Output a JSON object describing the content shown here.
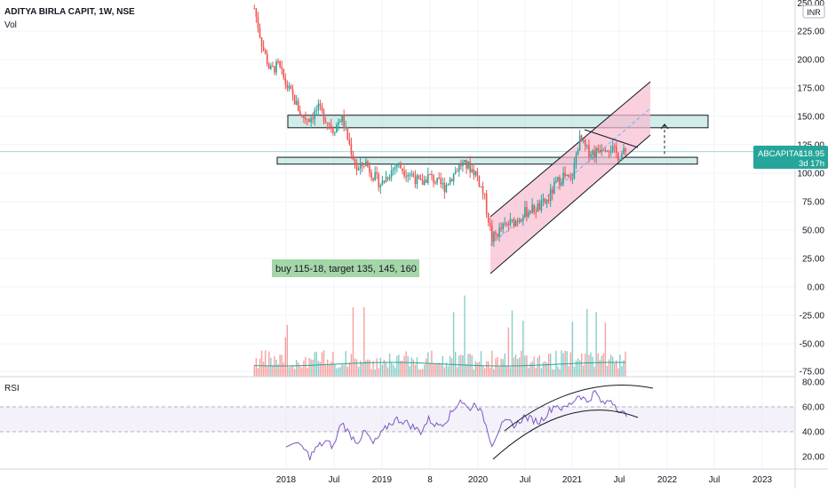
{
  "header": {
    "title": "ADITYA BIRLA CAPIT, 1W, NSE",
    "vol_label": "Vol"
  },
  "currency": "INR",
  "price_tag": {
    "symbol": "ABCAPITAL",
    "value": "118.95",
    "countdown": "3d 17h"
  },
  "annotation": "buy 115-18, target 135, 145, 160",
  "colors": {
    "up": "#26a69a",
    "down": "#ef5350",
    "text": "#131722",
    "zone_fill": "#b2dfdb",
    "channel_fill": "#f8bbd0",
    "rsi_line": "#7e57c2",
    "rsi_band": "#ede7f6",
    "vol_ma": "#26a69a",
    "annotation_bg": "#a5d6a7"
  },
  "rsi_label": "RSI",
  "chart_data": [
    {
      "type": "candlestick",
      "title": "ADITYA BIRLA CAPIT, 1W, NSE",
      "x_ticks": [
        "2018",
        "Jul",
        "2019",
        "8",
        "2020",
        "Jul",
        "2021",
        "Jul",
        "2022",
        "Jul",
        "2023"
      ],
      "y_ticks": [
        "225.00",
        "200.00",
        "175.00",
        "150.00",
        "125.00",
        "100.00",
        "75.00",
        "50.00",
        "25.00",
        "0.00",
        "-25.00",
        "-50.00",
        "-75.00"
      ],
      "y_top_partial": "250.00",
      "last_price": 118.95,
      "waypoints": [
        [
          "2017-09",
          245
        ],
        [
          "2017-10",
          212
        ],
        [
          "2017-11",
          190
        ],
        [
          "2017-12",
          195
        ],
        [
          "2018-01",
          178
        ],
        [
          "2018-02",
          165
        ],
        [
          "2018-03",
          150
        ],
        [
          "2018-04",
          148
        ],
        [
          "2018-05",
          157
        ],
        [
          "2018-06",
          148
        ],
        [
          "2018-07",
          138
        ],
        [
          "2018-08",
          150
        ],
        [
          "2018-09",
          125
        ],
        [
          "2018-10",
          102
        ],
        [
          "2018-11",
          110
        ],
        [
          "2018-12",
          98
        ],
        [
          "2019-01",
          90
        ],
        [
          "2019-02",
          100
        ],
        [
          "2019-03",
          108
        ],
        [
          "2019-04",
          102
        ],
        [
          "2019-05",
          98
        ],
        [
          "2019-06",
          90
        ],
        [
          "2019-07",
          98
        ],
        [
          "2019-08",
          92
        ],
        [
          "2019-09",
          88
        ],
        [
          "2019-10",
          98
        ],
        [
          "2019-11",
          108
        ],
        [
          "2019-12",
          106
        ],
        [
          "2020-01",
          100
        ],
        [
          "2020-02",
          80
        ],
        [
          "2020-03",
          42
        ],
        [
          "2020-04",
          50
        ],
        [
          "2020-05",
          55
        ],
        [
          "2020-06",
          58
        ],
        [
          "2020-07",
          65
        ],
        [
          "2020-08",
          68
        ],
        [
          "2020-09",
          70
        ],
        [
          "2020-10",
          76
        ],
        [
          "2020-11",
          90
        ],
        [
          "2020-12",
          98
        ],
        [
          "2021-01",
          92
        ],
        [
          "2021-02",
          130
        ],
        [
          "2021-03",
          120
        ],
        [
          "2021-04",
          118
        ],
        [
          "2021-05",
          125
        ],
        [
          "2021-06",
          122
        ],
        [
          "2021-07",
          115
        ],
        [
          "2021-08",
          119
        ]
      ],
      "zones": [
        {
          "top": 151,
          "bottom": 140
        },
        {
          "top": 114,
          "bottom": 108
        }
      ],
      "target_arrow": {
        "from": 117,
        "to": 143
      }
    },
    {
      "type": "bar",
      "title": "Vol"
    },
    {
      "type": "line",
      "title": "RSI",
      "y_ticks": [
        "80.00",
        "60.00",
        "40.00",
        "20.00"
      ],
      "band": [
        40,
        60
      ],
      "waypoints": [
        [
          "2018-01",
          30
        ],
        [
          "2018-03",
          28
        ],
        [
          "2018-04",
          20
        ],
        [
          "2018-05",
          28
        ],
        [
          "2018-06",
          32
        ],
        [
          "2018-07",
          28
        ],
        [
          "2018-08",
          48
        ],
        [
          "2018-09",
          38
        ],
        [
          "2018-10",
          32
        ],
        [
          "2018-11",
          40
        ],
        [
          "2018-12",
          30
        ],
        [
          "2019-01",
          38
        ],
        [
          "2019-02",
          46
        ],
        [
          "2019-03",
          50
        ],
        [
          "2019-04",
          48
        ],
        [
          "2019-05",
          44
        ],
        [
          "2019-06",
          40
        ],
        [
          "2019-07",
          50
        ],
        [
          "2019-08",
          45
        ],
        [
          "2019-09",
          48
        ],
        [
          "2019-10",
          56
        ],
        [
          "2019-11",
          66
        ],
        [
          "2019-12",
          58
        ],
        [
          "2020-01",
          63
        ],
        [
          "2020-02",
          50
        ],
        [
          "2020-03",
          30
        ],
        [
          "2020-04",
          44
        ],
        [
          "2020-05",
          48
        ],
        [
          "2020-06",
          45
        ],
        [
          "2020-07",
          52
        ],
        [
          "2020-08",
          50
        ],
        [
          "2020-09",
          48
        ],
        [
          "2020-10",
          55
        ],
        [
          "2020-11",
          62
        ],
        [
          "2020-12",
          58
        ],
        [
          "2021-01",
          63
        ],
        [
          "2021-02",
          70
        ],
        [
          "2021-03",
          64
        ],
        [
          "2021-04",
          72
        ],
        [
          "2021-05",
          62
        ],
        [
          "2021-06",
          66
        ],
        [
          "2021-07",
          58
        ],
        [
          "2021-08",
          52
        ]
      ]
    }
  ]
}
